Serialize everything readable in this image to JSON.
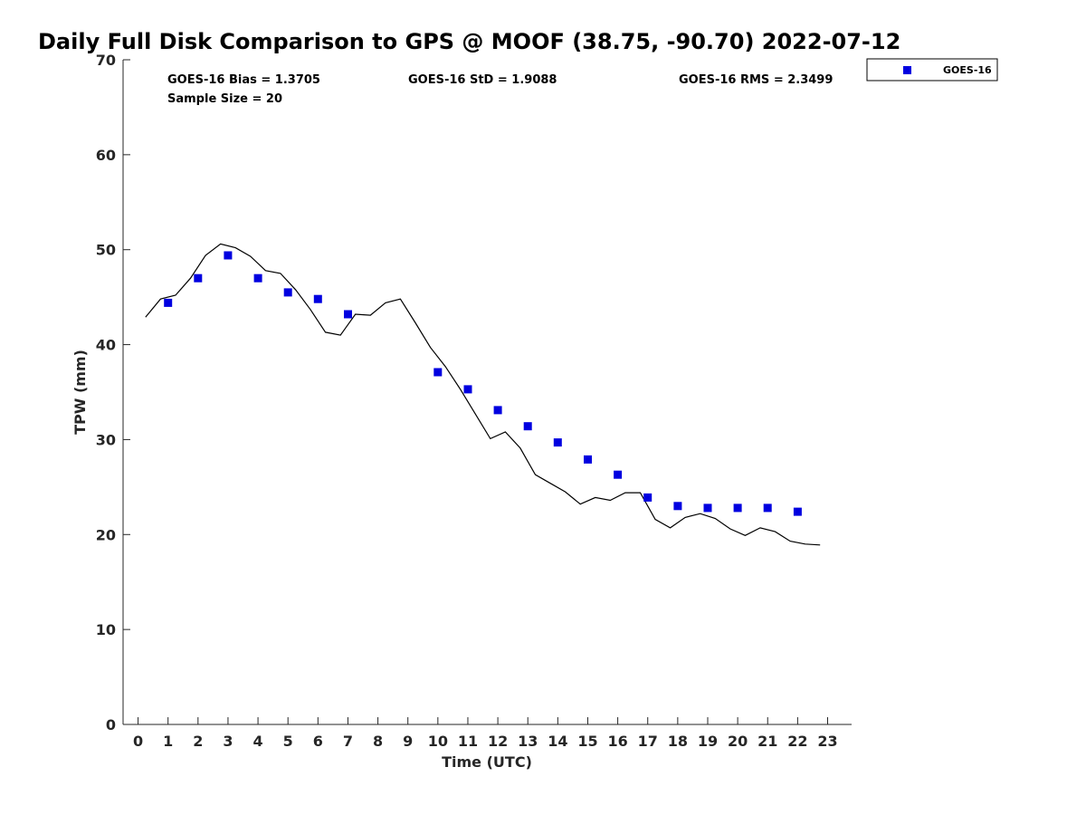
{
  "chart_data": {
    "type": "scatter",
    "title": "Daily Full Disk Comparison to GPS @ MOOF (38.75, -90.70) 2022-07-12",
    "xlabel": "Time (UTC)",
    "ylabel": "TPW (mm)",
    "xlim": [
      -0.5,
      23.8
    ],
    "ylim": [
      0,
      70
    ],
    "x_ticks": [
      0,
      1,
      2,
      3,
      4,
      5,
      6,
      7,
      8,
      9,
      10,
      11,
      12,
      13,
      14,
      15,
      16,
      17,
      18,
      19,
      20,
      21,
      22,
      23
    ],
    "y_ticks": [
      0,
      10,
      20,
      30,
      40,
      50,
      60,
      70
    ],
    "grid": false,
    "legend_position": "top-right, outside plot",
    "stats": {
      "bias": "GOES-16 Bias = 1.3705",
      "std": "GOES-16 StD = 1.9088",
      "rms": "GOES-16 RMS = 2.3499",
      "sample": "Sample Size = 20"
    },
    "series": [
      {
        "name": "GOES-16",
        "kind": "scatter",
        "marker": "square",
        "color": "#0000e0",
        "x": [
          1,
          2,
          3,
          4,
          5,
          6,
          7,
          10,
          11,
          12,
          13,
          14,
          15,
          16,
          17,
          18,
          19,
          20,
          21,
          22
        ],
        "y": [
          44.4,
          47.0,
          49.4,
          47.0,
          45.5,
          44.8,
          43.2,
          37.1,
          35.3,
          33.1,
          31.4,
          29.7,
          27.9,
          26.3,
          23.9,
          23.0,
          22.8,
          22.8,
          22.8,
          22.4
        ]
      },
      {
        "kind": "line",
        "color": "#000000",
        "x": [
          0.25,
          0.75,
          1.25,
          1.75,
          2.25,
          2.75,
          3.25,
          3.75,
          4.25,
          4.75,
          5.25,
          5.75,
          6.25,
          6.75,
          7.25,
          7.75,
          8.25,
          8.75,
          9.25,
          9.75,
          10.25,
          10.75,
          11.25,
          11.75,
          12.25,
          12.75,
          13.25,
          13.75,
          14.25,
          14.75,
          15.25,
          15.75,
          16.25,
          16.75,
          17.25,
          17.75,
          18.25,
          18.75,
          19.25,
          19.75,
          20.25,
          20.75,
          21.25,
          21.75,
          22.25,
          22.75
        ],
        "y": [
          42.9,
          44.8,
          45.2,
          47.0,
          49.4,
          50.6,
          50.2,
          49.3,
          47.8,
          47.5,
          45.8,
          43.7,
          41.3,
          41.0,
          43.2,
          43.1,
          44.4,
          44.8,
          42.3,
          39.7,
          37.7,
          35.3,
          32.7,
          30.1,
          30.8,
          29.1,
          26.3,
          25.4,
          24.5,
          23.2,
          23.9,
          23.6,
          24.4,
          24.4,
          21.6,
          20.7,
          21.8,
          22.2,
          21.7,
          20.6,
          19.9,
          20.7,
          20.3,
          19.3,
          19.0,
          18.9
        ]
      }
    ]
  }
}
